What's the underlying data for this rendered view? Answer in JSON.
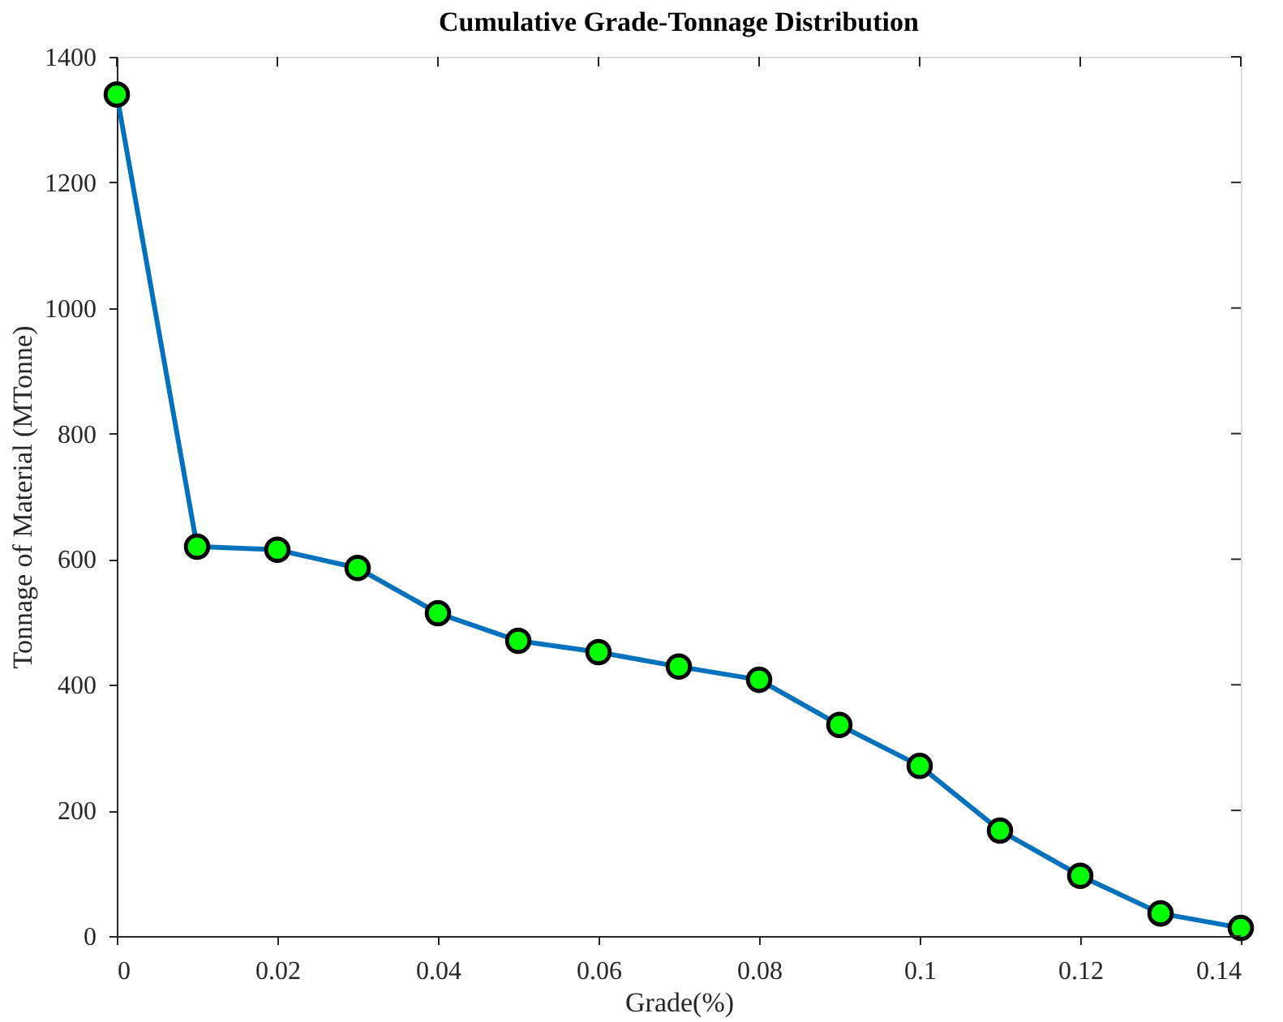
{
  "chart_data": {
    "type": "line",
    "title": "Cumulative Grade-Tonnage Distribution",
    "xlabel": "Grade(%)",
    "ylabel": "Tonnage of Material (MTonne)",
    "x": [
      0,
      0.01,
      0.02,
      0.03,
      0.04,
      0.05,
      0.06,
      0.07,
      0.08,
      0.09,
      0.1,
      0.11,
      0.12,
      0.13,
      0.14
    ],
    "series": [
      {
        "color": "#0072bd",
        "values": [
          1340,
          620,
          615,
          586,
          514,
          470,
          452,
          429,
          408,
          336,
          271,
          168,
          96,
          36,
          13
        ]
      }
    ],
    "xlim": [
      0,
      0.14
    ],
    "xticks": [
      0,
      0.02,
      0.04,
      0.06,
      0.08,
      0.1,
      0.12,
      0.14
    ],
    "ylim": [
      0,
      1400
    ],
    "yticks": [
      0,
      200,
      400,
      600,
      800,
      1000,
      1200,
      1400
    ],
    "grid": false,
    "marker": "circle",
    "line_style": "solid"
  }
}
